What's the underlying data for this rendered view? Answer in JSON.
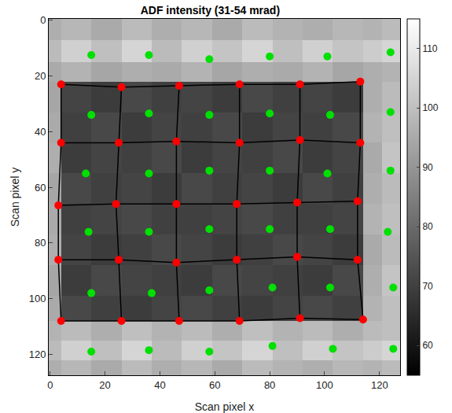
{
  "chart_data": {
    "type": "heatmap",
    "title": "ADF intensity (31-54 mrad)",
    "x_label": "Scan pixel x",
    "y_label": "Scan pixel y",
    "xlim": [
      -0.5,
      127.5
    ],
    "ylim": [
      127.5,
      -0.5
    ],
    "xticks": [
      0,
      20,
      40,
      60,
      80,
      100,
      120
    ],
    "yticks": [
      0,
      20,
      40,
      60,
      80,
      100,
      120
    ],
    "x_edges": [
      -0.5,
      4,
      15,
      26,
      37,
      48,
      59,
      70,
      81,
      92,
      103,
      114,
      121,
      127.5
    ],
    "y_edges": [
      -0.5,
      7,
      15,
      22,
      33,
      44,
      55,
      66,
      77,
      88,
      99,
      108,
      115,
      122,
      127.5
    ],
    "z": [
      [
        96,
        98,
        95,
        99,
        96,
        98,
        95,
        99,
        97,
        96,
        98,
        97,
        99
      ],
      [
        99,
        104,
        100,
        105,
        99,
        104,
        101,
        105,
        100,
        104,
        101,
        103,
        105
      ],
      [
        95,
        97,
        94,
        96,
        95,
        97,
        94,
        96,
        95,
        97,
        94,
        96,
        97
      ],
      [
        94,
        71,
        69,
        72,
        70,
        71,
        69,
        72,
        70,
        71,
        69,
        96,
        99
      ],
      [
        95,
        70,
        72,
        69,
        71,
        70,
        72,
        69,
        71,
        70,
        72,
        97,
        100
      ],
      [
        96,
        69,
        71,
        70,
        72,
        69,
        71,
        70,
        72,
        69,
        71,
        95,
        101
      ],
      [
        94,
        72,
        70,
        71,
        69,
        72,
        70,
        71,
        69,
        72,
        70,
        96,
        99
      ],
      [
        95,
        70,
        71,
        72,
        70,
        70,
        71,
        72,
        70,
        70,
        71,
        97,
        100
      ],
      [
        96,
        71,
        69,
        70,
        72,
        71,
        69,
        70,
        72,
        71,
        69,
        95,
        99
      ],
      [
        94,
        69,
        72,
        71,
        70,
        69,
        72,
        71,
        70,
        69,
        72,
        96,
        101
      ],
      [
        95,
        72,
        70,
        69,
        71,
        72,
        70,
        69,
        71,
        72,
        70,
        97,
        100
      ],
      [
        97,
        99,
        96,
        100,
        97,
        99,
        96,
        100,
        97,
        99,
        96,
        99,
        100
      ],
      [
        99,
        104,
        100,
        105,
        99,
        104,
        101,
        105,
        100,
        104,
        101,
        103,
        105
      ],
      [
        96,
        98,
        95,
        99,
        96,
        98,
        95,
        99,
        97,
        96,
        98,
        97,
        99
      ]
    ],
    "colorbar": {
      "range": [
        55,
        115
      ],
      "ticks": [
        60,
        70,
        80,
        90,
        100,
        110
      ]
    },
    "series": [
      {
        "type": "lattice",
        "color": "#ff0000",
        "marker": "circle",
        "line_style": "solid",
        "rows": [
          {
            "x": [
              4,
              26,
              47,
              69,
              91,
              113
            ],
            "y": [
              23,
              24,
              23.5,
              23,
              23,
              22
            ]
          },
          {
            "x": [
              4,
              25,
              46,
              69,
              91,
              113
            ],
            "y": [
              44,
              44,
              43.5,
              44,
              43,
              44
            ]
          },
          {
            "x": [
              3,
              24,
              46,
              68,
              90,
              112
            ],
            "y": [
              66.5,
              66,
              66,
              66,
              65.5,
              65
            ]
          },
          {
            "x": [
              3,
              25,
              46,
              68,
              90,
              112
            ],
            "y": [
              86,
              86,
              87,
              86,
              85,
              86
            ]
          },
          {
            "x": [
              4,
              26,
              47,
              69,
              91,
              114
            ],
            "y": [
              108,
              108,
              108,
              108,
              107,
              107.5
            ]
          }
        ]
      },
      {
        "type": "scatter",
        "color": "#00e000",
        "marker": "circle",
        "x": [
          15,
          36,
          58,
          80,
          101,
          124,
          15,
          36,
          58,
          80,
          102,
          124,
          13,
          36,
          58,
          80,
          101,
          124,
          14,
          36,
          58,
          80,
          102,
          123,
          15,
          37,
          58,
          81,
          102,
          125,
          15,
          36,
          58,
          81,
          103,
          125
        ],
        "y": [
          12.5,
          12.5,
          14,
          13,
          13,
          11.5,
          34,
          33.5,
          34,
          33.5,
          34,
          33,
          55,
          55,
          54,
          54,
          55,
          54,
          76,
          76,
          75,
          75,
          75,
          76,
          98,
          98,
          97,
          96,
          96,
          96,
          119,
          118.5,
          119,
          117,
          118,
          118
        ]
      }
    ]
  }
}
